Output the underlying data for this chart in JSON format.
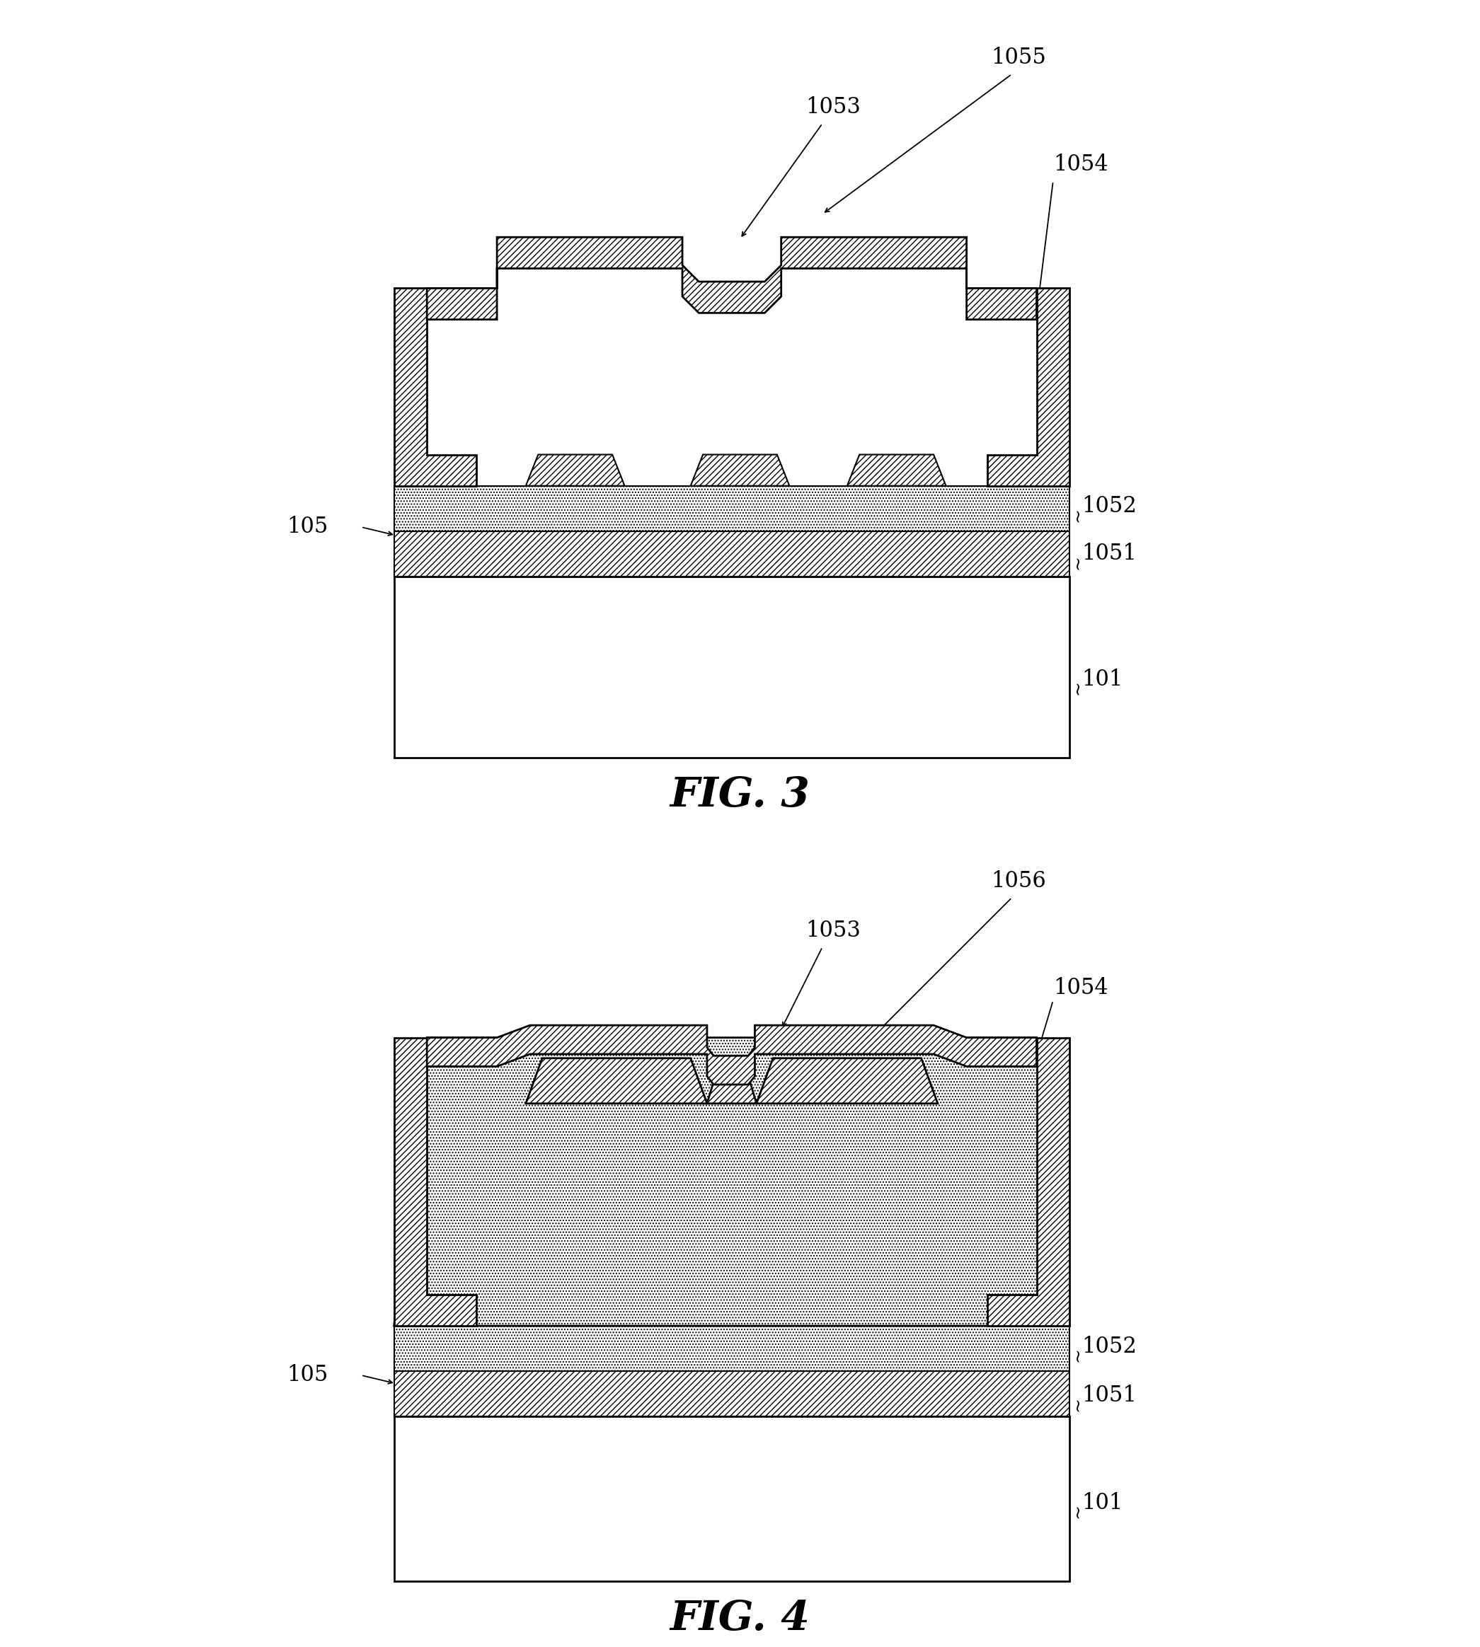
{
  "bg_color": "#ffffff",
  "lw_main": 2.0,
  "lw_thin": 1.5,
  "hatch_diag": "////",
  "hatch_dot": "....",
  "fig3_title": "FIG. 3",
  "fig4_title": "FIG. 4",
  "label_fontsize": 22,
  "title_fontsize": 42,
  "arrow_lw": 1.3
}
